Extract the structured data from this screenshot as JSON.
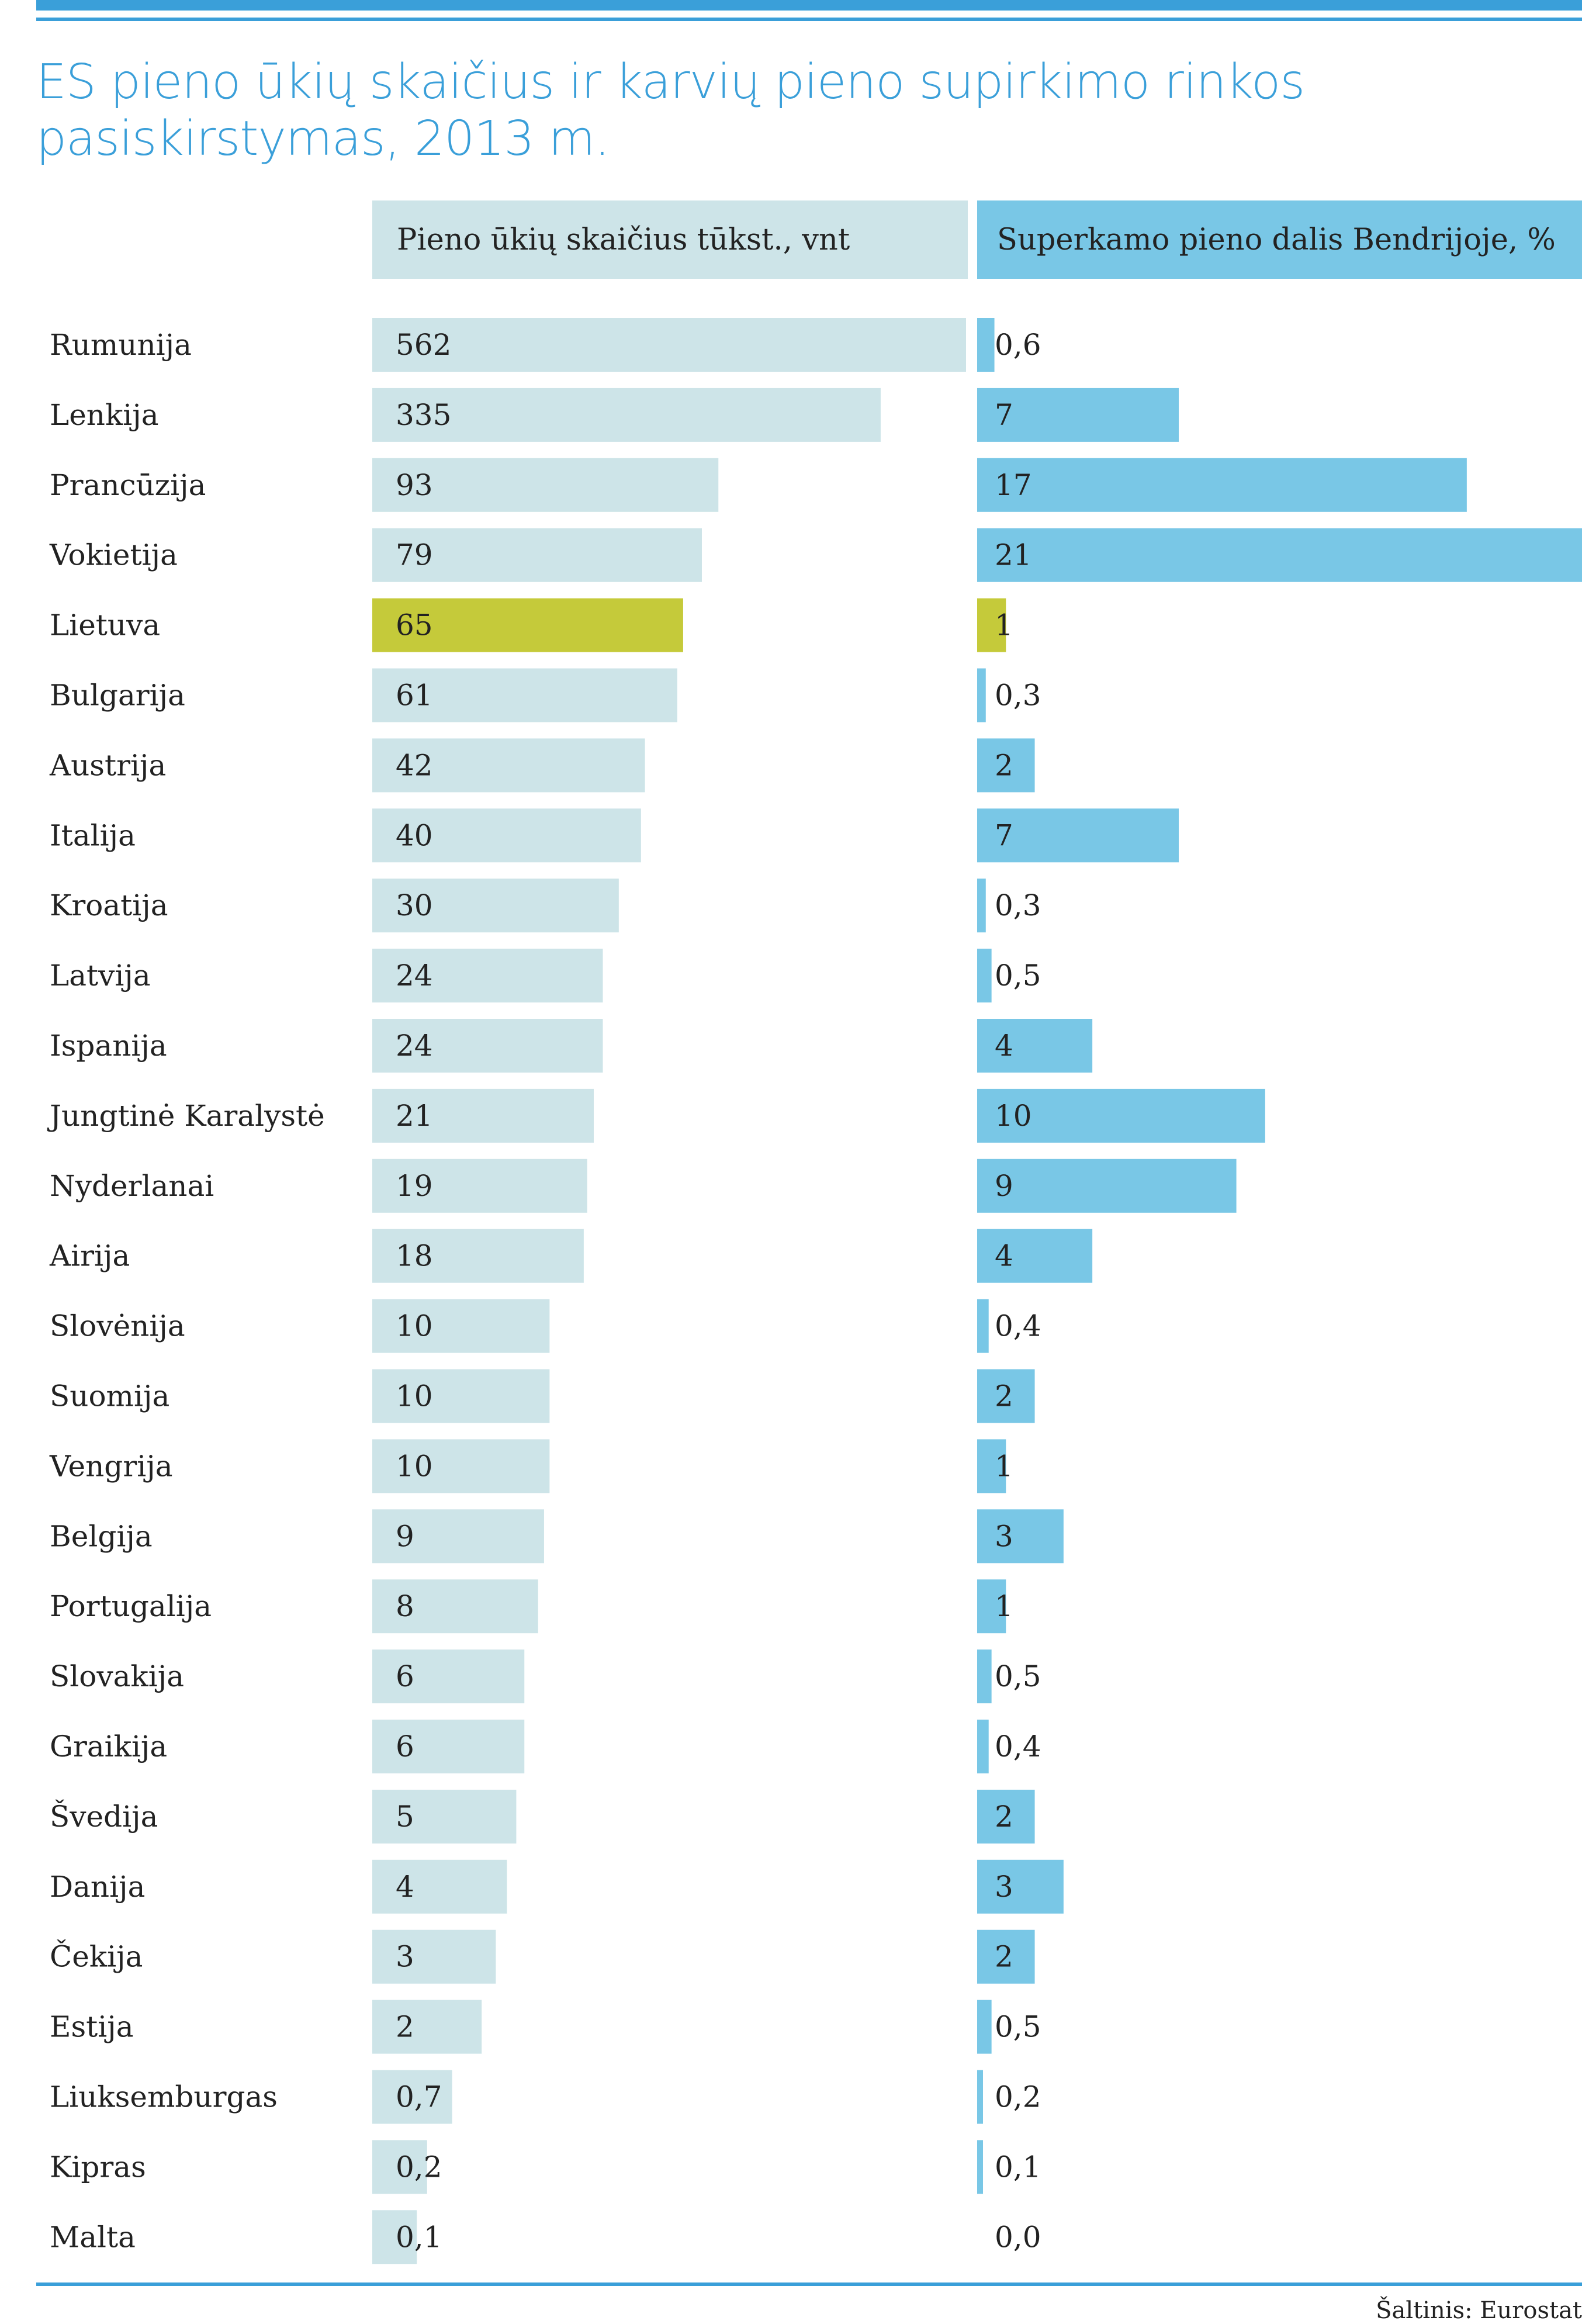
{
  "title": "ES pieno ūkių skaičius ir karvių pieno supirkimo rinkos pasiskirstymas, 2013 m.",
  "source": "Šaltinis: Eurostat",
  "colors": {
    "accent": "#3a9fd9",
    "left_bar": "#cde4e8",
    "right_bar": "#79c7e6",
    "highlight": "#c5ca3a"
  },
  "chart_data": {
    "type": "bar",
    "orientation": "horizontal",
    "highlight_category": "Lietuva",
    "categories": [
      "Rumunija",
      "Lenkija",
      "Prancūzija",
      "Vokietija",
      "Lietuva",
      "Bulgarija",
      "Austrija",
      "Italija",
      "Kroatija",
      "Latvija",
      "Ispanija",
      "Jungtinė Karalystė",
      "Nyderlanai",
      "Airija",
      "Slovėnija",
      "Suomija",
      "Vengrija",
      "Belgija",
      "Portugalija",
      "Slovakija",
      "Graikija",
      "Švedija",
      "Danija",
      "Čekija",
      "Estija",
      "Liuksemburgas",
      "Kipras",
      "Malta"
    ],
    "series": [
      {
        "name": "Pieno ūkių skaičius tūkst., vnt",
        "values": [
          562,
          335,
          93,
          79,
          65,
          61,
          42,
          40,
          30,
          24,
          24,
          21,
          19,
          18,
          10,
          10,
          10,
          9,
          8,
          6,
          6,
          5,
          4,
          3,
          2,
          0.7,
          0.2,
          0.1
        ],
        "labels": [
          "562",
          "335",
          "93",
          "79",
          "65",
          "61",
          "42",
          "40",
          "30",
          "24",
          "24",
          "21",
          "19",
          "18",
          "10",
          "10",
          "10",
          "9",
          "8",
          "6",
          "6",
          "5",
          "4",
          "3",
          "2",
          "0,7",
          "0,2",
          "0,1"
        ]
      },
      {
        "name": "Superkamo pieno dalis Bendrijoje, %",
        "values": [
          0.6,
          7,
          17,
          21,
          1,
          0.3,
          2,
          7,
          0.3,
          0.5,
          4,
          10,
          9,
          4,
          0.4,
          2,
          1,
          3,
          1,
          0.5,
          0.4,
          2,
          3,
          2,
          0.5,
          0.2,
          0.1,
          0.0
        ],
        "labels": [
          "0,6",
          "7",
          "17",
          "21",
          "1",
          "0,3",
          "2",
          "7",
          "0,3",
          "0,5",
          "4",
          "10",
          "9",
          "4",
          "0,4",
          "2",
          "1",
          "3",
          "1",
          "0,5",
          "0,4",
          "2",
          "3",
          "2",
          "0,5",
          "0,2",
          "0,1",
          "0,0"
        ]
      }
    ]
  }
}
